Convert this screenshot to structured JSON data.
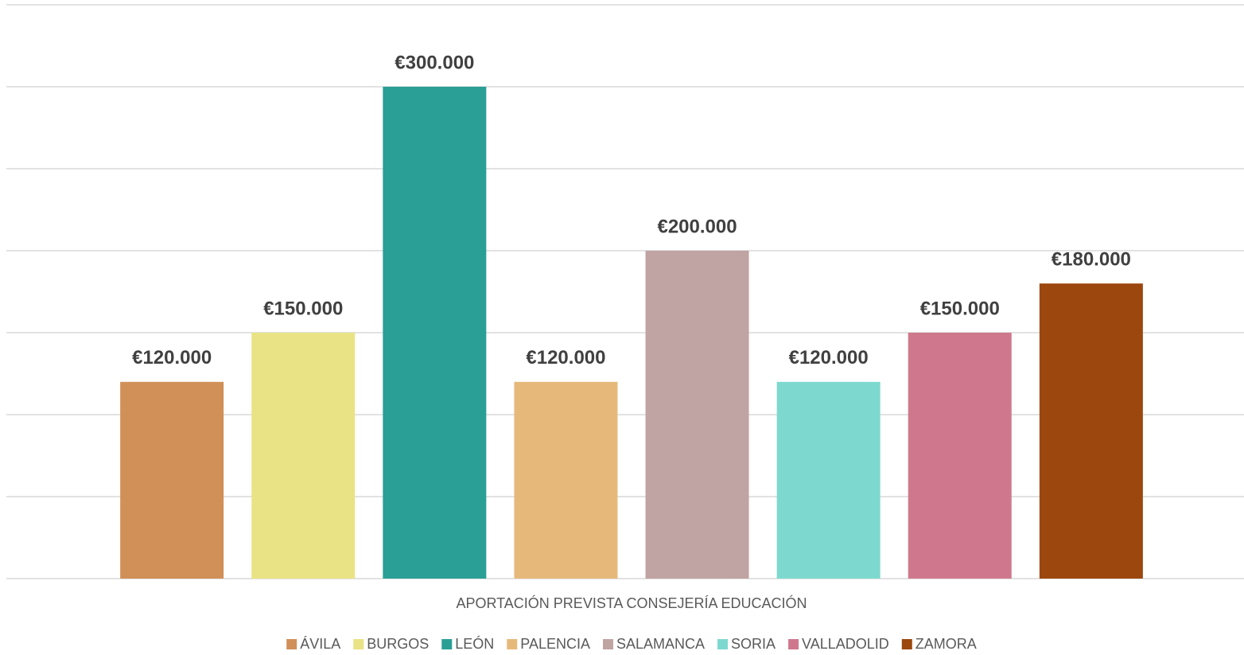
{
  "chart_data": {
    "type": "bar",
    "categories": [
      "APORTACIÓN PREVISTA  CONSEJERÍA EDUCACIÓN"
    ],
    "series": [
      {
        "name": "ÁVILA",
        "color": "#d09058",
        "values": [
          120000
        ],
        "value_labels": [
          "€120.000"
        ]
      },
      {
        "name": "BURGOS",
        "color": "#e9e385",
        "values": [
          150000
        ],
        "value_labels": [
          "€150.000"
        ]
      },
      {
        "name": "LEÓN",
        "color": "#2a9f96",
        "values": [
          300000
        ],
        "value_labels": [
          "€300.000"
        ]
      },
      {
        "name": "PALENCIA",
        "color": "#e6b97b",
        "values": [
          120000
        ],
        "value_labels": [
          "€120.000"
        ]
      },
      {
        "name": "SALAMANCA",
        "color": "#c0a3a3",
        "values": [
          200000
        ],
        "value_labels": [
          "€200.000"
        ]
      },
      {
        "name": "SORIA",
        "color": "#7dd9cf",
        "values": [
          120000
        ],
        "value_labels": [
          "€120.000"
        ]
      },
      {
        "name": "VALLADOLID",
        "color": "#cf788d",
        "values": [
          150000
        ],
        "value_labels": [
          "€150.000"
        ]
      },
      {
        "name": "ZAMORA",
        "color": "#9c470e",
        "values": [
          180000
        ],
        "value_labels": [
          "€180.000"
        ]
      }
    ],
    "ylim": [
      0,
      350000
    ],
    "yticks": [
      0,
      50000,
      100000,
      150000,
      200000,
      250000,
      300000,
      350000
    ],
    "grid": true,
    "legend": "bottom"
  }
}
